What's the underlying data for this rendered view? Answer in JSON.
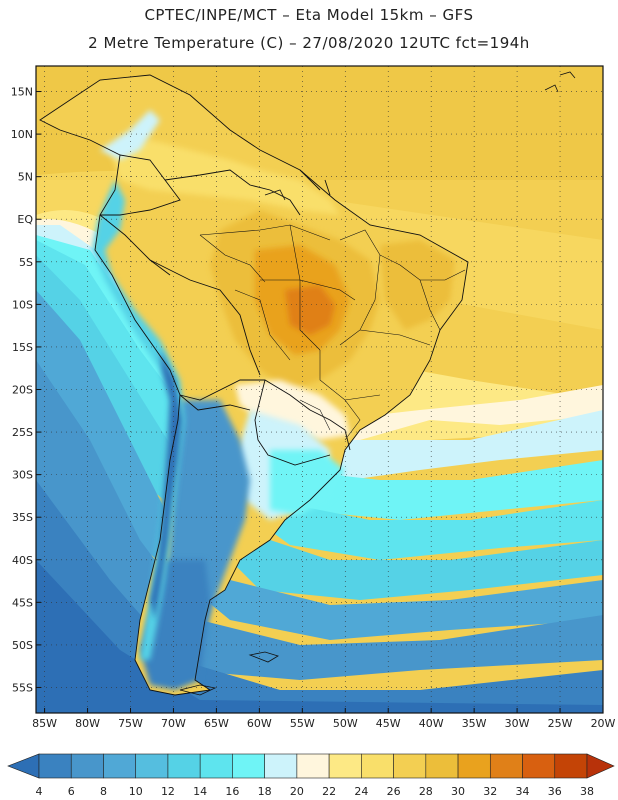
{
  "header": {
    "line1": "CPTEC/INPE/MCT  –   Eta Model 15km  –  GFS",
    "line2": "2 Metre Temperature (C)  –  27/08/2020 12UTC fct=194h"
  },
  "map": {
    "lat_range": [
      18,
      -58
    ],
    "lon_range": [
      -86,
      -20
    ],
    "lat_labels": [
      "15N",
      "10N",
      "5N",
      "EQ",
      "5S",
      "10S",
      "15S",
      "20S",
      "25S",
      "30S",
      "35S",
      "40S",
      "45S",
      "50S",
      "55S"
    ],
    "lon_labels": [
      "85W",
      "80W",
      "75W",
      "70W",
      "65W",
      "60W",
      "55W",
      "50W",
      "45W",
      "40W",
      "35W",
      "30W",
      "25W",
      "20W"
    ]
  },
  "colorbar": {
    "labels": [
      "4",
      "6",
      "8",
      "10",
      "12",
      "14",
      "16",
      "18",
      "20",
      "22",
      "24",
      "26",
      "28",
      "30",
      "32",
      "34",
      "36",
      "38"
    ],
    "colors": [
      "#2d6fb5",
      "#3a82c0",
      "#4896cb",
      "#50a8d6",
      "#55bedf",
      "#55d2e6",
      "#5ee4ee",
      "#6ff4f6",
      "#cdf3fb",
      "#fff6dd",
      "#fde985",
      "#f9df6a",
      "#f3cf52",
      "#ecbe3a",
      "#e9a21e",
      "#e08018",
      "#d86010",
      "#c44406",
      "#b8320a"
    ]
  }
}
